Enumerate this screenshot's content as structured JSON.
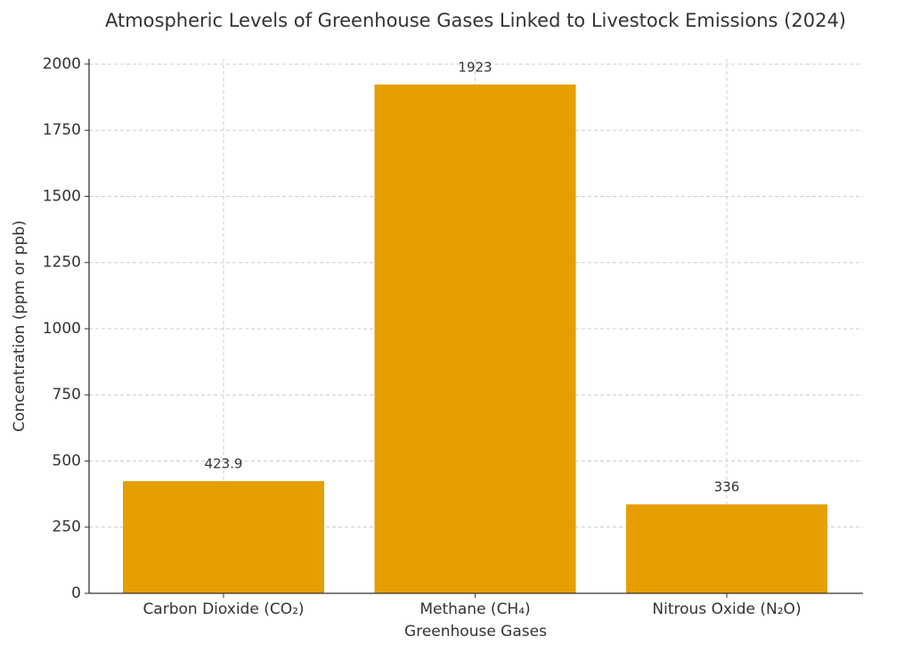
{
  "chart_data": {
    "type": "bar",
    "title": "Atmospheric Levels of Greenhouse Gases Linked to Livestock Emissions (2024)",
    "x_label": "Greenhouse Gases",
    "y_label": "Concentration (ppm or ppb)",
    "categories": [
      "Carbon Dioxide (CO₂)",
      "Methane (CH₄)",
      "Nitrous Oxide (N₂O)"
    ],
    "values": [
      423.9,
      1923,
      336
    ],
    "color": "#e59f00",
    "ylim": [
      0,
      2020
    ],
    "yticks": [
      0,
      250,
      500,
      750,
      1000,
      1250,
      1500,
      1750,
      2000
    ],
    "grid": true
  }
}
